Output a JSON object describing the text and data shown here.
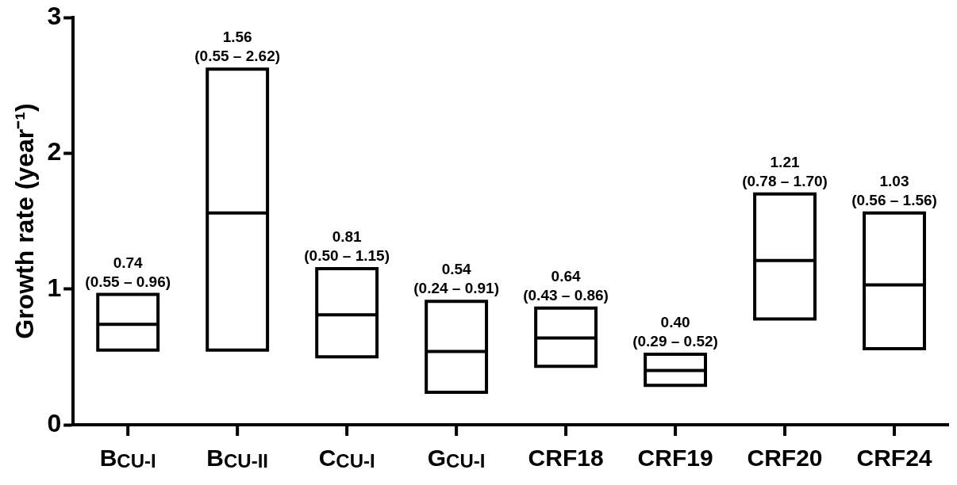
{
  "chart_data": {
    "type": "box",
    "ylabel": "Growth rate (year⁻¹)",
    "color": "#000000",
    "categories": [
      "B$_{CU-I}$",
      "B$_{CU-II}$",
      "C$_{CU-I}$",
      "G$_{CU-I}$",
      "CRF18",
      "CRF19",
      "CRF20",
      "CRF24"
    ],
    "boxes": [
      {
        "low": 0.55,
        "q1": 0.55,
        "median": 0.74,
        "q3": 0.96,
        "high": 0.96
      },
      {
        "low": 0.55,
        "q1": 0.55,
        "median": 1.56,
        "q3": 2.62,
        "high": 2.62
      },
      {
        "low": 0.5,
        "q1": 0.5,
        "median": 0.81,
        "q3": 1.15,
        "high": 1.15
      },
      {
        "low": 0.24,
        "q1": 0.24,
        "median": 0.54,
        "q3": 0.91,
        "high": 0.91
      },
      {
        "low": 0.43,
        "q1": 0.43,
        "median": 0.64,
        "q3": 0.86,
        "high": 0.86
      },
      {
        "low": 0.29,
        "q1": 0.29,
        "median": 0.4,
        "q3": 0.52,
        "high": 0.52
      },
      {
        "low": 0.78,
        "q1": 0.78,
        "median": 1.21,
        "q3": 1.7,
        "high": 1.7
      },
      {
        "low": 0.56,
        "q1": 0.56,
        "median": 1.03,
        "q3": 1.56,
        "high": 1.56
      }
    ],
    "ylim": [
      0,
      3
    ],
    "yticks": [
      0,
      1,
      2,
      3
    ],
    "annotations": [
      {
        "text": "0.74\n(0.55 – 0.96)",
        "x": "B$_{CU-I}$",
        "y": 0.96
      },
      {
        "text": "1.56\n(0.55 – 2.62)",
        "x": "B$_{CU-II}$",
        "y": 2.62
      },
      {
        "text": "0.81\n(0.50 – 1.15)",
        "x": "C$_{CU-I}$",
        "y": 1.15
      },
      {
        "text": "0.54\n(0.24 – 0.91)",
        "x": "G$_{CU-I}$",
        "y": 0.91
      },
      {
        "text": "0.64\n(0.43 – 0.86)",
        "x": "CRF18",
        "y": 0.86
      },
      {
        "text": "0.40\n(0.29 – 0.52)",
        "x": "CRF19",
        "y": 0.52
      },
      {
        "text": "1.21\n(0.78 – 1.70)",
        "x": "CRF20",
        "y": 1.7
      },
      {
        "text": "1.03\n(0.56 – 1.56)",
        "x": "CRF24",
        "y": 1.56
      }
    ]
  }
}
